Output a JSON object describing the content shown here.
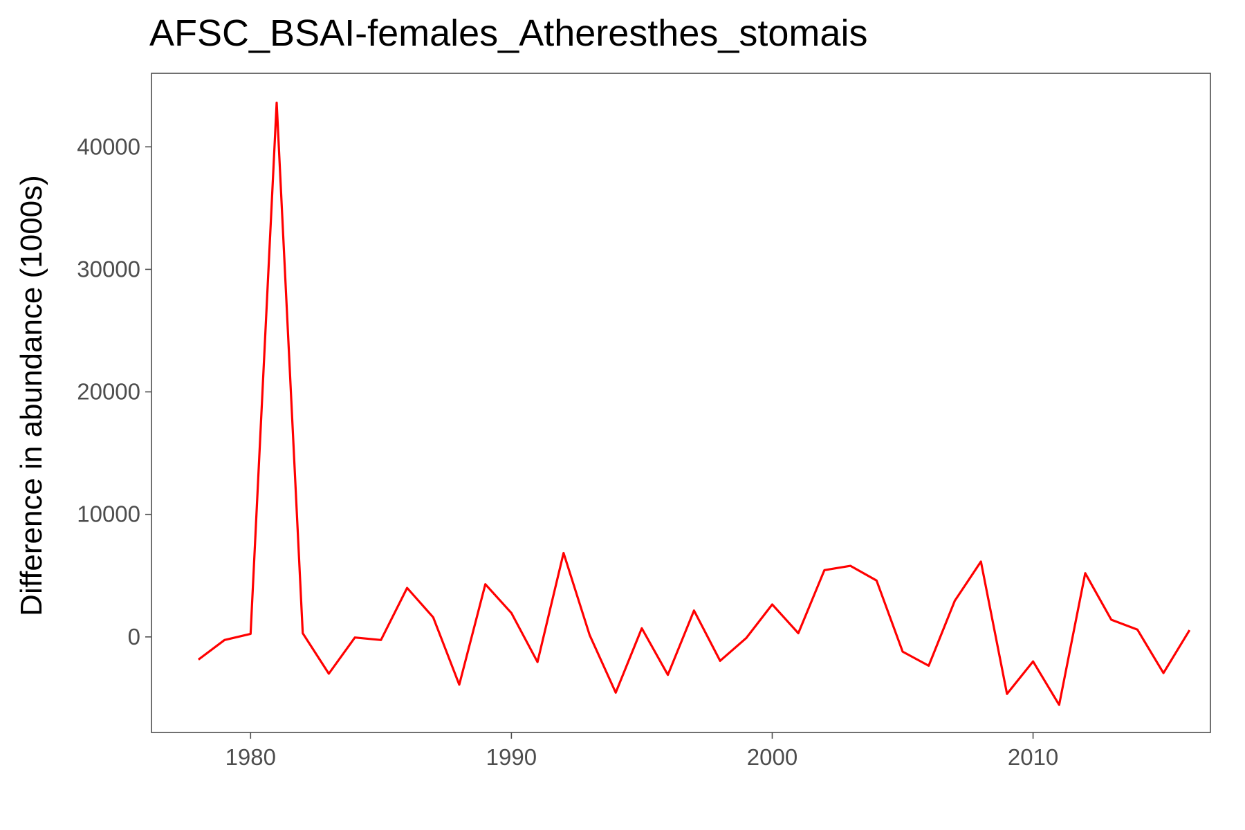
{
  "chart_data": {
    "type": "line",
    "title": "AFSC_BSAI-females_Atheresthes_stomais",
    "xlabel": "",
    "ylabel": "Difference in abundance (1000s)",
    "xlim": [
      1976.2,
      2016.8
    ],
    "ylim": [
      -7800,
      46000
    ],
    "x_ticks": [
      1980,
      1990,
      2000,
      2010
    ],
    "y_ticks": [
      0,
      10000,
      20000,
      30000,
      40000
    ],
    "grid": false,
    "legend": "none",
    "series": [
      {
        "color": "#ff0000",
        "x": [
          1978,
          1979,
          1980,
          1981,
          1982,
          1983,
          1984,
          1985,
          1986,
          1987,
          1988,
          1989,
          1990,
          1991,
          1992,
          1993,
          1994,
          1995,
          1996,
          1997,
          1998,
          1999,
          2000,
          2001,
          2002,
          2003,
          2004,
          2005,
          2006,
          2007,
          2008,
          2009,
          2010,
          2011,
          2012,
          2013,
          2014,
          2015,
          2016
        ],
        "y": [
          -1850,
          -250,
          250,
          43600,
          300,
          -3000,
          -50,
          -250,
          4000,
          1600,
          -3900,
          4300,
          1950,
          -2050,
          6850,
          150,
          -4550,
          700,
          -3100,
          2150,
          -1950,
          -100,
          2650,
          300,
          5450,
          5800,
          4600,
          -1200,
          -2350,
          2950,
          6150,
          -4650,
          -2000,
          -5550,
          5200,
          1400,
          600,
          -2950,
          550
        ]
      }
    ]
  }
}
